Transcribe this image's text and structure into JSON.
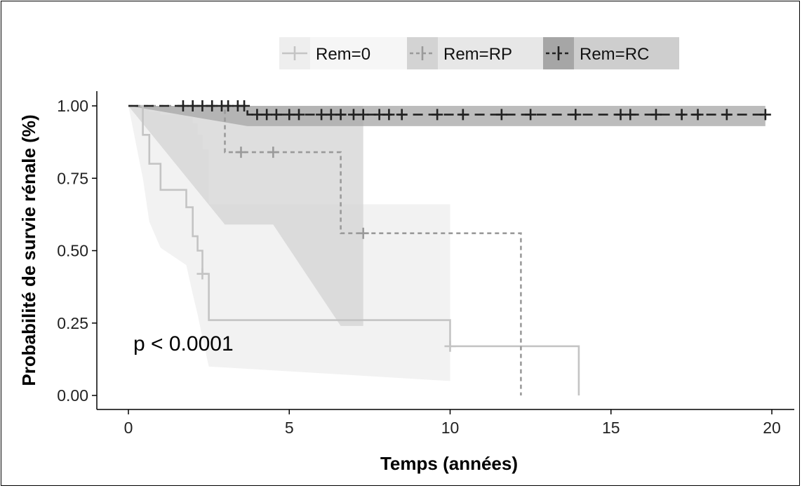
{
  "chart_data": {
    "type": "line",
    "subtype": "kaplan-meier",
    "xlabel": "Temps (années)",
    "ylabel": "Probabilité de survie rénale (%)",
    "xlim": [
      0,
      20
    ],
    "ylim": [
      0,
      1
    ],
    "xticks": [
      "0",
      "5",
      "10",
      "15",
      "20"
    ],
    "yticks": [
      "0.00",
      "0.25",
      "0.50",
      "0.75",
      "1.00"
    ],
    "annotation": "p < 0.0001",
    "legend_position": "top",
    "grid": false,
    "series": [
      {
        "name": "Rem=0",
        "color": "#c4c4c4",
        "band_color": "#eeeeee",
        "dash": "solid",
        "steps": [
          [
            0,
            1.0
          ],
          [
            0.45,
            0.9
          ],
          [
            0.65,
            0.8
          ],
          [
            1.0,
            0.71
          ],
          [
            1.8,
            0.65
          ],
          [
            2.0,
            0.55
          ],
          [
            2.15,
            0.5
          ],
          [
            2.3,
            0.42
          ],
          [
            2.5,
            0.26
          ],
          [
            10.0,
            0.17
          ],
          [
            14.0,
            0.0
          ]
        ],
        "ci_lower": [
          [
            0,
            1.0
          ],
          [
            0.45,
            0.75
          ],
          [
            0.65,
            0.6
          ],
          [
            1.0,
            0.51
          ],
          [
            1.8,
            0.45
          ],
          [
            2.0,
            0.35
          ],
          [
            2.15,
            0.28
          ],
          [
            2.3,
            0.2
          ],
          [
            2.5,
            0.1
          ],
          [
            10.0,
            0.05
          ]
        ],
        "ci_upper": [
          [
            0,
            1.0
          ],
          [
            0.45,
            0.99
          ],
          [
            0.65,
            0.98
          ],
          [
            1.0,
            0.97
          ],
          [
            1.8,
            0.96
          ],
          [
            2.0,
            0.94
          ],
          [
            2.15,
            0.9
          ],
          [
            2.3,
            0.85
          ],
          [
            2.5,
            0.66
          ],
          [
            10.0,
            0.59
          ]
        ],
        "censors": [
          [
            2.3,
            0.42
          ],
          [
            10.0,
            0.17
          ]
        ]
      },
      {
        "name": "Rem=RP",
        "color": "#9a9a9a",
        "band_color": "#d3d3d3",
        "dash": "short-dash",
        "steps": [
          [
            0,
            1.0
          ],
          [
            3.0,
            0.84
          ],
          [
            6.6,
            0.56
          ],
          [
            12.2,
            0.0
          ]
        ],
        "ci_lower": [
          [
            0,
            1.0
          ],
          [
            3.0,
            0.59
          ],
          [
            4.5,
            0.59
          ],
          [
            6.6,
            0.24
          ],
          [
            7.3,
            0.24
          ]
        ],
        "ci_upper": [
          [
            0,
            1.0
          ],
          [
            3.0,
            1.0
          ],
          [
            7.3,
            1.0
          ]
        ],
        "censors": [
          [
            3.5,
            0.84
          ],
          [
            4.5,
            0.84
          ],
          [
            7.3,
            0.56
          ]
        ]
      },
      {
        "name": "Rem=RC",
        "color": "#222222",
        "band_color": "#a6a6a6",
        "dash": "long-dash",
        "steps": [
          [
            0,
            1.0
          ],
          [
            3.7,
            0.97
          ],
          [
            19.8,
            0.97
          ]
        ],
        "ci_lower": [
          [
            0,
            1.0
          ],
          [
            3.7,
            0.93
          ],
          [
            19.8,
            0.93
          ]
        ],
        "ci_upper": [
          [
            0,
            1.0
          ],
          [
            3.7,
            1.0
          ],
          [
            19.8,
            1.0
          ]
        ],
        "censors": [
          [
            1.7,
            1.0
          ],
          [
            2.0,
            1.0
          ],
          [
            2.3,
            1.0
          ],
          [
            2.6,
            1.0
          ],
          [
            2.9,
            1.0
          ],
          [
            3.1,
            1.0
          ],
          [
            3.4,
            1.0
          ],
          [
            3.6,
            1.0
          ],
          [
            4.0,
            0.97
          ],
          [
            4.3,
            0.97
          ],
          [
            4.6,
            0.97
          ],
          [
            5.0,
            0.97
          ],
          [
            5.3,
            0.97
          ],
          [
            6.0,
            0.97
          ],
          [
            6.3,
            0.97
          ],
          [
            6.6,
            0.97
          ],
          [
            7.0,
            0.97
          ],
          [
            7.3,
            0.97
          ],
          [
            7.8,
            0.97
          ],
          [
            8.1,
            0.97
          ],
          [
            8.5,
            0.97
          ],
          [
            9.6,
            0.97
          ],
          [
            10.4,
            0.97
          ],
          [
            11.6,
            0.97
          ],
          [
            12.5,
            0.97
          ],
          [
            13.9,
            0.97
          ],
          [
            15.3,
            0.97
          ],
          [
            15.6,
            0.97
          ],
          [
            16.4,
            0.97
          ],
          [
            17.2,
            0.97
          ],
          [
            17.7,
            0.97
          ],
          [
            18.6,
            0.97
          ],
          [
            19.8,
            0.97
          ]
        ]
      }
    ]
  }
}
